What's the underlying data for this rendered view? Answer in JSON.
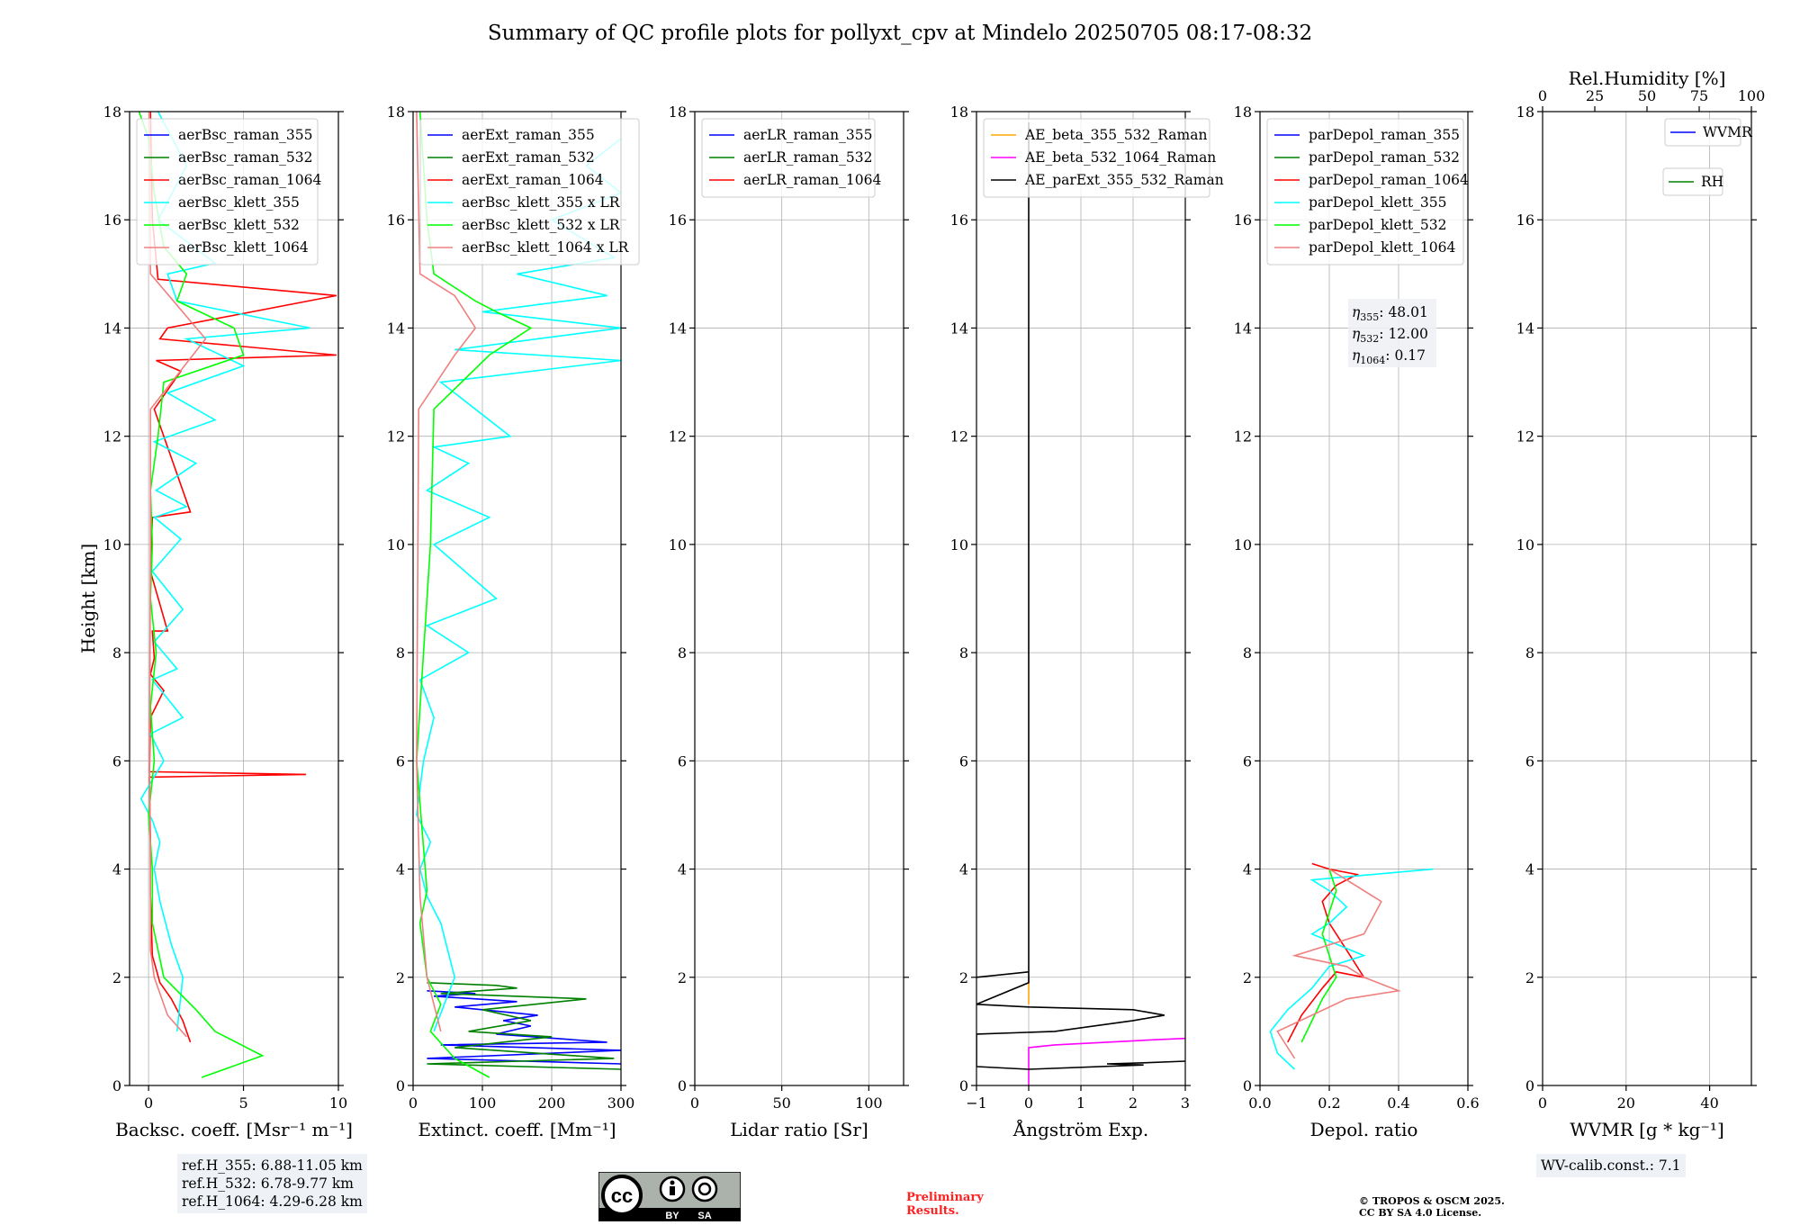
{
  "title": "Summary of QC profile plots for pollyxt_cpv at Mindelo 20250705 08:17-08:32",
  "colors": {
    "blue": "#0000ff",
    "green": "#008000",
    "red": "#ff0000",
    "cyan": "#00ffff",
    "lime": "#00ff00",
    "salmon": "#f08080",
    "orange": "#ffa500",
    "magenta": "#ff00ff",
    "black": "#000000"
  },
  "chart_data": [
    {
      "type": "line",
      "id": "bsc",
      "xlabel": "Backsc. coeff. [Msr⁻¹ m⁻¹]",
      "ylabel": "Height [km]",
      "xlim": [
        -1,
        10
      ],
      "ylim": [
        0,
        18
      ],
      "xticks": [
        0,
        5,
        10
      ],
      "xtick_labels": [
        "0",
        "5",
        "10"
      ],
      "yticks": [
        0,
        2,
        4,
        6,
        8,
        10,
        12,
        14,
        16,
        18
      ],
      "ytick_labels": [
        "0",
        "2",
        "4",
        "6",
        "8",
        "10",
        "12",
        "14",
        "16",
        "18"
      ],
      "grid": true,
      "legend_position": "top-left",
      "series": [
        {
          "name": "aerBsc_raman_355",
          "color": "blue",
          "x": [],
          "y": []
        },
        {
          "name": "aerBsc_raman_532",
          "color": "green",
          "x": [],
          "y": []
        },
        {
          "name": "aerBsc_raman_1064",
          "color": "red",
          "x": [
            2.2,
            1.8,
            1.2,
            0.6,
            0.2,
            0.1,
            0.1,
            0.05,
            8.3,
            0.05,
            0.1,
            0.8,
            0.1,
            0.3,
            0.2,
            1.0,
            0.1,
            0.2,
            2.2,
            0.3,
            1.7,
            0.4,
            9.9,
            0.6,
            1.0,
            9.9,
            0.5,
            0.2,
            0.1
          ],
          "y": [
            0.8,
            1.2,
            1.6,
            1.9,
            2.4,
            3.5,
            4.5,
            5.7,
            5.75,
            5.8,
            6.8,
            7.3,
            7.6,
            7.9,
            8.4,
            8.4,
            9.5,
            10.5,
            10.6,
            12.5,
            13.2,
            13.4,
            13.5,
            13.8,
            14.0,
            14.6,
            14.9,
            16.0,
            18.0
          ]
        },
        {
          "name": "aerBsc_klett_355",
          "color": "cyan",
          "x": [
            1.5,
            1.8,
            1.2,
            0.6,
            0.3,
            0.6,
            0.2,
            -0.4,
            0.8,
            0.1,
            1.8,
            0.2,
            1.5,
            0.3,
            1.8,
            0.2,
            1.7,
            0.3,
            2.0,
            0.4,
            2.5,
            0.3,
            3.5,
            1.0,
            5.0,
            2.0,
            8.5,
            1.5,
            1.0,
            3.5,
            0.5,
            2.0,
            0.5
          ],
          "y": [
            1.0,
            2.0,
            2.6,
            3.4,
            4.0,
            4.5,
            4.9,
            5.3,
            6.0,
            6.5,
            6.8,
            7.5,
            7.7,
            8.2,
            8.8,
            9.5,
            10.1,
            10.5,
            10.7,
            11.0,
            11.5,
            11.9,
            12.3,
            12.8,
            13.3,
            13.8,
            14.0,
            14.5,
            15.0,
            15.2,
            16.0,
            17.0,
            18.0
          ]
        },
        {
          "name": "aerBsc_klett_532",
          "color": "lime",
          "x": [
            2.8,
            6.0,
            3.5,
            2.5,
            0.8,
            0.2,
            0.2,
            0.0,
            0.3,
            0.1,
            0.4,
            0.1,
            0.2,
            0.1,
            0.5,
            0.8,
            5.0,
            4.5,
            1.5,
            2.0,
            0.8,
            0.3,
            0.0,
            -0.5
          ],
          "y": [
            0.15,
            0.55,
            1.0,
            1.4,
            2.0,
            3.0,
            4.0,
            5.0,
            6.0,
            7.0,
            8.0,
            9.0,
            10.0,
            11.0,
            12.0,
            13.0,
            13.5,
            14.0,
            14.5,
            15.0,
            15.5,
            16.5,
            17.5,
            18.0
          ]
        },
        {
          "name": "aerBsc_klett_1064",
          "color": "salmon",
          "x": [
            2.0,
            1.0,
            0.3,
            0.1,
            0.1,
            0.05,
            0.1,
            0.1,
            3.0,
            0.1,
            0.05
          ],
          "y": [
            0.9,
            1.3,
            2.0,
            2.5,
            4.0,
            6.0,
            10.0,
            12.5,
            13.8,
            15.0,
            18.0
          ]
        }
      ],
      "annotations": []
    },
    {
      "type": "line",
      "id": "ext",
      "xlabel": "Extinct. coeff. [Mm⁻¹]",
      "ylabel": "",
      "xlim": [
        0,
        300
      ],
      "ylim": [
        0,
        18
      ],
      "xticks": [
        0,
        100,
        200,
        300
      ],
      "xtick_labels": [
        "0",
        "100",
        "200",
        "300"
      ],
      "yticks": [
        0,
        2,
        4,
        6,
        8,
        10,
        12,
        14,
        16,
        18
      ],
      "ytick_labels": [
        "0",
        "2",
        "4",
        "6",
        "8",
        "10",
        "12",
        "14",
        "16",
        "18"
      ],
      "grid": true,
      "legend_position": "top-left",
      "series": [
        {
          "name": "aerExt_raman_355",
          "color": "blue",
          "x": [
            300,
            20,
            300,
            40,
            280,
            120,
            170,
            130,
            180,
            60,
            150,
            30,
            90,
            20
          ],
          "y": [
            0.4,
            0.5,
            0.65,
            0.75,
            0.8,
            0.95,
            1.1,
            1.2,
            1.3,
            1.45,
            1.55,
            1.65,
            1.7,
            1.75
          ]
        },
        {
          "name": "aerExt_raman_532",
          "color": "green",
          "x": [
            300,
            20,
            290,
            60,
            200,
            80,
            170,
            100,
            250,
            40,
            150,
            120,
            20
          ],
          "y": [
            0.3,
            0.4,
            0.5,
            0.7,
            0.9,
            1.0,
            1.2,
            1.4,
            1.6,
            1.7,
            1.8,
            1.85,
            1.9
          ]
        },
        {
          "name": "aerExt_raman_1064",
          "color": "red",
          "x": [],
          "y": []
        },
        {
          "name": "aerBsc_klett_355 x LR",
          "color": "cyan",
          "x": [
            30,
            60,
            40,
            20,
            10,
            25,
            5,
            15,
            30,
            10,
            80,
            20,
            120,
            30,
            110,
            20,
            80,
            30,
            140,
            40,
            300,
            60,
            300,
            100,
            280,
            150,
            290,
            200,
            300,
            250,
            300
          ],
          "y": [
            1.0,
            2.0,
            3.0,
            3.5,
            4.0,
            4.5,
            5.0,
            6.0,
            6.8,
            7.5,
            8.0,
            8.5,
            9.0,
            10.0,
            10.5,
            11.0,
            11.5,
            11.8,
            12.0,
            13.0,
            13.4,
            13.6,
            14.0,
            14.3,
            14.6,
            15.0,
            15.3,
            16.0,
            16.5,
            17.0,
            17.5
          ]
        },
        {
          "name": "aerBsc_klett_532 x LR",
          "color": "lime",
          "x": [
            110,
            60,
            25,
            40,
            20,
            10,
            20,
            5,
            25,
            30,
            110,
            170,
            120,
            90,
            30,
            20,
            10
          ],
          "y": [
            0.15,
            0.5,
            1.0,
            1.5,
            2.0,
            3.0,
            3.6,
            6.0,
            10.0,
            12.5,
            13.5,
            14.0,
            14.3,
            14.5,
            15.0,
            16.0,
            18.0
          ]
        },
        {
          "name": "aerBsc_klett_1064 x LR",
          "color": "salmon",
          "x": [
            40,
            20,
            10,
            5,
            8,
            60,
            90,
            60,
            10,
            5
          ],
          "y": [
            1.0,
            2.0,
            3.5,
            6.0,
            12.5,
            13.5,
            14.0,
            14.6,
            15.0,
            18.0
          ]
        }
      ],
      "annotations": []
    },
    {
      "type": "line",
      "id": "lr",
      "xlabel": "Lidar ratio [Sr]",
      "ylabel": "",
      "xlim": [
        0,
        120
      ],
      "ylim": [
        0,
        18
      ],
      "xticks": [
        0,
        50,
        100
      ],
      "xtick_labels": [
        "0",
        "50",
        "100"
      ],
      "yticks": [
        0,
        2,
        4,
        6,
        8,
        10,
        12,
        14,
        16,
        18
      ],
      "ytick_labels": [
        "0",
        "2",
        "4",
        "6",
        "8",
        "10",
        "12",
        "14",
        "16",
        "18"
      ],
      "grid": true,
      "legend_position": "top-left",
      "series": [
        {
          "name": "aerLR_raman_355",
          "color": "blue",
          "x": [],
          "y": []
        },
        {
          "name": "aerLR_raman_532",
          "color": "green",
          "x": [],
          "y": []
        },
        {
          "name": "aerLR_raman_1064",
          "color": "red",
          "x": [],
          "y": []
        }
      ],
      "annotations": []
    },
    {
      "type": "line",
      "id": "ae",
      "xlabel": "Ångström Exp.",
      "ylabel": "",
      "xlim": [
        -1,
        3
      ],
      "ylim": [
        0,
        18
      ],
      "xticks": [
        -1,
        0,
        1,
        2,
        3
      ],
      "xtick_labels": [
        "−1",
        "0",
        "1",
        "2",
        "3"
      ],
      "yticks": [
        0,
        2,
        4,
        6,
        8,
        10,
        12,
        14,
        16,
        18
      ],
      "ytick_labels": [
        "0",
        "2",
        "4",
        "6",
        "8",
        "10",
        "12",
        "14",
        "16",
        "18"
      ],
      "grid": true,
      "legend_position": "top-left",
      "series": [
        {
          "name": "AE_beta_355_532_Raman",
          "color": "orange",
          "x": [
            0.0,
            0.0,
            0.0
          ],
          "y": [
            1.5,
            1.8,
            2.0
          ]
        },
        {
          "name": "AE_beta_532_1064_Raman",
          "color": "magenta",
          "x": [
            0.0,
            0.0,
            0.5,
            1.5,
            2.5,
            3.0
          ],
          "y": [
            0.0,
            0.7,
            0.75,
            0.8,
            0.85,
            0.87
          ]
        },
        {
          "name": "AE_parExt_355_532_Raman",
          "color": "black",
          "x": [
            -1.0,
            0.0,
            0.0,
            0.0,
            0.0,
            -1.0,
            0.0,
            2.0,
            2.6,
            2.0,
            0.5,
            -1.0,
            -1.0,
            0.0,
            2.2,
            1.5,
            2.2,
            3.0
          ],
          "y": [
            2.0,
            2.1,
            4.0,
            17.8,
            1.9,
            1.5,
            1.45,
            1.4,
            1.3,
            1.2,
            1.0,
            0.95,
            0.35,
            0.3,
            0.38,
            0.4,
            0.42,
            0.45
          ]
        }
      ],
      "annotations": []
    },
    {
      "type": "line",
      "id": "depol",
      "xlabel": "Depol. ratio",
      "ylabel": "",
      "xlim": [
        0,
        0.6
      ],
      "ylim": [
        0,
        18
      ],
      "xticks": [
        0,
        0.2,
        0.4,
        0.6
      ],
      "xtick_labels": [
        "0.0",
        "0.2",
        "0.4",
        "0.6"
      ],
      "yticks": [
        0,
        2,
        4,
        6,
        8,
        10,
        12,
        14,
        16,
        18
      ],
      "ytick_labels": [
        "0",
        "2",
        "4",
        "6",
        "8",
        "10",
        "12",
        "14",
        "16",
        "18"
      ],
      "grid": true,
      "legend_position": "top-left",
      "series": [
        {
          "name": "parDepol_raman_355",
          "color": "blue",
          "x": [],
          "y": []
        },
        {
          "name": "parDepol_raman_532",
          "color": "green",
          "x": [],
          "y": []
        },
        {
          "name": "parDepol_raman_1064",
          "color": "red",
          "x": [
            0.08,
            0.12,
            0.18,
            0.22,
            0.3,
            0.25,
            0.2,
            0.18,
            0.22,
            0.28,
            0.2,
            0.15
          ],
          "y": [
            0.8,
            1.3,
            1.8,
            2.1,
            2.0,
            2.5,
            3.0,
            3.4,
            3.7,
            3.9,
            4.0,
            4.1
          ]
        },
        {
          "name": "parDepol_klett_355",
          "color": "cyan",
          "x": [
            0.1,
            0.05,
            0.03,
            0.08,
            0.15,
            0.2,
            0.3,
            0.15,
            0.2,
            0.25,
            0.2,
            0.15,
            0.5
          ],
          "y": [
            0.3,
            0.6,
            1.0,
            1.4,
            1.8,
            2.2,
            2.4,
            2.8,
            3.0,
            3.3,
            3.6,
            3.8,
            4.0
          ]
        },
        {
          "name": "parDepol_klett_532",
          "color": "lime",
          "x": [
            0.12,
            0.15,
            0.18,
            0.22,
            0.2,
            0.18,
            0.2,
            0.22,
            0.2
          ],
          "y": [
            0.8,
            1.2,
            1.6,
            2.0,
            2.4,
            2.8,
            3.2,
            3.6,
            4.0
          ]
        },
        {
          "name": "parDepol_klett_1064",
          "color": "salmon",
          "x": [
            0.1,
            0.05,
            0.15,
            0.25,
            0.4,
            0.3,
            0.25,
            0.1,
            0.3,
            0.35,
            0.2
          ],
          "y": [
            0.5,
            1.0,
            1.3,
            1.6,
            1.75,
            2.0,
            2.2,
            2.4,
            2.8,
            3.4,
            4.0
          ]
        }
      ],
      "annotations": [
        {
          "symbol": "η",
          "sub": "355",
          "value": ": 48.01"
        },
        {
          "symbol": "η",
          "sub": "532",
          "value": ": 12.00"
        },
        {
          "symbol": "η",
          "sub": "1064",
          "value": ": 0.17"
        }
      ]
    },
    {
      "type": "line",
      "id": "wv",
      "xlabel": "WVMR [g * kg⁻¹]",
      "ylabel": "",
      "xlim": [
        0,
        50
      ],
      "ylim": [
        0,
        18
      ],
      "xticks": [
        0,
        20,
        40
      ],
      "xtick_labels": [
        "0",
        "20",
        "40"
      ],
      "yticks": [
        0,
        2,
        4,
        6,
        8,
        10,
        12,
        14,
        16,
        18
      ],
      "ytick_labels": [
        "0",
        "2",
        "4",
        "6",
        "8",
        "10",
        "12",
        "14",
        "16",
        "18"
      ],
      "top_axis": {
        "label": "Rel.Humidity [%]",
        "ticks": [
          0,
          25,
          50,
          75,
          100
        ],
        "tick_labels": [
          "0",
          "25",
          "50",
          "75",
          "100"
        ]
      },
      "grid": true,
      "legend_position": "top-right",
      "series": [
        {
          "name": "WVMR",
          "color": "blue",
          "x": [],
          "y": []
        },
        {
          "name": "RH",
          "color": "green",
          "x": [],
          "y": []
        }
      ],
      "annotations": []
    }
  ],
  "ref_heights": [
    "ref.H_355: 6.88-11.05 km",
    "ref.H_532: 6.78-9.77 km",
    "ref.H_1064: 4.29-6.28 km"
  ],
  "wv_calib": "WV-calib.const.: 7.1",
  "preliminary": [
    "Preliminary",
    "Results."
  ],
  "copyright": [
    "© TROPOS & OSCM 2025.",
    "CC BY SA 4.0 License."
  ],
  "license_badge": {
    "main": "cc",
    "by": "BY",
    "sa": "SA"
  }
}
